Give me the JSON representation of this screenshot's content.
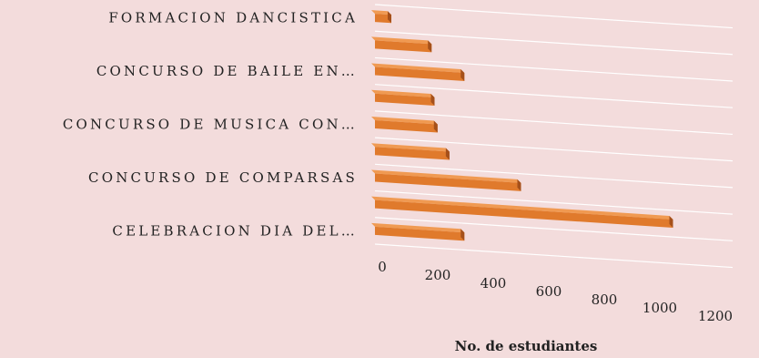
{
  "chart_data": {
    "type": "bar",
    "orientation": "horizontal",
    "title": "",
    "xlabel": "No. de estudiantes",
    "ylabel": "",
    "categories": [
      "CELEBRACION DIA DEL…",
      "",
      "CONCURSO DE COMPARSAS",
      "",
      "CONCURSO DE MUSICA CON…",
      "",
      "CONCURSO DE BAILE EN…",
      "",
      "FORMACION DANCISTICA"
    ],
    "values": [
      300,
      1000,
      490,
      250,
      210,
      200,
      300,
      190,
      55
    ],
    "xlim": [
      0,
      1200
    ],
    "xticks": [
      "0",
      "200",
      "400",
      "600",
      "800",
      "1000",
      "1200"
    ],
    "grid": true,
    "legend": "none",
    "bar_color": "#e07a2c",
    "bar_shade_color": "#a5501a"
  }
}
